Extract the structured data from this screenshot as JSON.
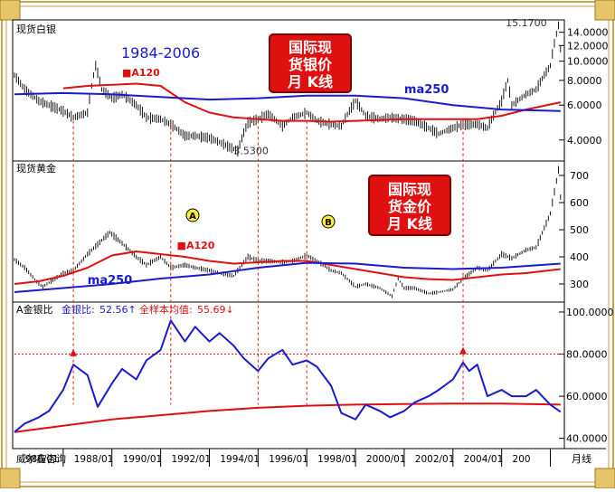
{
  "colors": {
    "frame_gold": "#c9a24a",
    "price": "#000000",
    "ma250": "#1a1ad0",
    "ma120": "#e01010",
    "ratio": "#1a1ad0",
    "ratio_mean": "#e01010",
    "event_line": "#e01010",
    "box_fill": "#e01010",
    "box_text": "#ffffff",
    "title_blue": "#1a1ad0"
  },
  "silver": {
    "panel_label": "现货白银",
    "period_title": "1984-2006",
    "box_lines": [
      "国际现",
      "货银价",
      "月  K线"
    ],
    "label_ma120": "■A120",
    "label_ma250": "ma250",
    "annot_high": "15.1700",
    "annot_low": "3.5300",
    "y_ticks": [
      "4.0000",
      "6.0000",
      "8.0000",
      "10.0000",
      "12.0000",
      "14.0000"
    ]
  },
  "gold": {
    "panel_label": "现货黄金",
    "box_lines": [
      "国际现",
      "货金价",
      "月  K线"
    ],
    "label_ma120": "■A120",
    "label_ma250": "ma250",
    "marker_a": "A",
    "marker_b": "B",
    "y_ticks": [
      "300",
      "400",
      "500",
      "600",
      "700"
    ]
  },
  "ratio": {
    "header_name": "A金银比",
    "header_ratio_label": "金银比:",
    "header_ratio_value": "52.56↑",
    "header_mean_label": "全样本均值:",
    "header_mean_value": "55.69↓",
    "y_ticks": [
      "40.0000",
      "60.0000",
      "80.0000",
      "100.0000"
    ]
  },
  "x_axis": {
    "source": "威尔鑫咨询",
    "ticks": [
      "986/01",
      "1988/01",
      "1990/01",
      "1992/01",
      "1994/01",
      "1996/01",
      "1998/01",
      "2000/01",
      "2002/01",
      "2004/01",
      "200"
    ],
    "suffix": "月线"
  },
  "chart_data": [
    {
      "type": "line",
      "title": "国际现货银价月K线",
      "subtitle": "1984-2006",
      "x_range": [
        "1984/01",
        "2006/06"
      ],
      "ylim": [
        3.2,
        15.5
      ],
      "series": [
        {
          "name": "现货白银",
          "points": [
            [
              "1984/01",
              8.5
            ],
            [
              "1984/06",
              7.2
            ],
            [
              "1985/01",
              6.3
            ],
            [
              "1985/06",
              6.0
            ],
            [
              "1986/01",
              5.6
            ],
            [
              "1986/06",
              5.2
            ],
            [
              "1987/01",
              5.5
            ],
            [
              "1987/05",
              9.5
            ],
            [
              "1987/08",
              7.2
            ],
            [
              "1988/01",
              6.5
            ],
            [
              "1988/06",
              6.8
            ],
            [
              "1989/01",
              6.0
            ],
            [
              "1989/06",
              5.2
            ],
            [
              "1990/01",
              5.1
            ],
            [
              "1990/06",
              4.8
            ],
            [
              "1991/01",
              4.2
            ],
            [
              "1991/06",
              4.2
            ],
            [
              "1992/01",
              4.1
            ],
            [
              "1992/06",
              3.9
            ],
            [
              "1993/01",
              3.6
            ],
            [
              "1993/03",
              3.53
            ],
            [
              "1993/08",
              4.9
            ],
            [
              "1994/01",
              5.1
            ],
            [
              "1994/06",
              5.4
            ],
            [
              "1995/01",
              4.7
            ],
            [
              "1995/06",
              5.2
            ],
            [
              "1996/01",
              5.5
            ],
            [
              "1996/06",
              5.0
            ],
            [
              "1997/01",
              4.8
            ],
            [
              "1997/06",
              4.7
            ],
            [
              "1998/01",
              6.3
            ],
            [
              "1998/06",
              5.3
            ],
            [
              "1999/01",
              5.1
            ],
            [
              "1999/06",
              5.2
            ],
            [
              "2000/01",
              5.1
            ],
            [
              "2000/06",
              5.0
            ],
            [
              "2001/01",
              4.6
            ],
            [
              "2001/06",
              4.3
            ],
            [
              "2002/01",
              4.6
            ],
            [
              "2002/06",
              4.8
            ],
            [
              "2003/01",
              4.8
            ],
            [
              "2003/06",
              4.6
            ],
            [
              "2004/01",
              6.3
            ],
            [
              "2004/04",
              8.0
            ],
            [
              "2004/06",
              6.0
            ],
            [
              "2005/01",
              6.8
            ],
            [
              "2005/06",
              7.2
            ],
            [
              "2006/01",
              9.5
            ],
            [
              "2006/05",
              15.17
            ],
            [
              "2006/06",
              11.5
            ]
          ]
        },
        {
          "name": "MA120",
          "points": [
            [
              "1986/01",
              7.3
            ],
            [
              "1987/01",
              7.5
            ],
            [
              "1988/01",
              7.6
            ],
            [
              "1989/01",
              7.7
            ],
            [
              "1990/01",
              7.5
            ],
            [
              "1991/01",
              6.2
            ],
            [
              "1992/01",
              5.5
            ],
            [
              "1993/01",
              5.2
            ],
            [
              "1994/01",
              5.1
            ],
            [
              "1995/01",
              5.0
            ],
            [
              "1996/01",
              5.0
            ],
            [
              "1997/01",
              4.95
            ],
            [
              "1998/01",
              5.0
            ],
            [
              "1999/01",
              5.05
            ],
            [
              "2000/01",
              5.1
            ],
            [
              "2001/01",
              5.1
            ],
            [
              "2002/01",
              5.1
            ],
            [
              "2003/01",
              5.1
            ],
            [
              "2004/01",
              5.3
            ],
            [
              "2005/01",
              5.7
            ],
            [
              "2006/06",
              6.2
            ]
          ]
        },
        {
          "name": "ma250",
          "points": [
            [
              "1984/01",
              6.8
            ],
            [
              "1986/01",
              6.9
            ],
            [
              "1988/01",
              6.8
            ],
            [
              "1990/01",
              6.6
            ],
            [
              "1992/01",
              6.4
            ],
            [
              "1994/01",
              6.5
            ],
            [
              "1996/01",
              6.7
            ],
            [
              "1998/01",
              6.7
            ],
            [
              "2000/01",
              6.5
            ],
            [
              "2002/01",
              6.0
            ],
            [
              "2004/01",
              5.7
            ],
            [
              "2006/06",
              5.6
            ]
          ]
        }
      ]
    },
    {
      "type": "line",
      "title": "国际现货金价月K线",
      "x_range": [
        "1984/01",
        "2006/06"
      ],
      "ylim": [
        240,
        740
      ],
      "series": [
        {
          "name": "现货黄金",
          "points": [
            [
              "1984/01",
              390
            ],
            [
              "1984/06",
              360
            ],
            [
              "1985/01",
              300
            ],
            [
              "1985/03",
              290
            ],
            [
              "1986/01",
              340
            ],
            [
              "1986/06",
              350
            ],
            [
              "1987/01",
              410
            ],
            [
              "1987/12",
              490
            ],
            [
              "1988/06",
              450
            ],
            [
              "1989/01",
              400
            ],
            [
              "1989/06",
              370
            ],
            [
              "1990/01",
              400
            ],
            [
              "1990/06",
              360
            ],
            [
              "1991/01",
              370
            ],
            [
              "1991/06",
              360
            ],
            [
              "1992/01",
              350
            ],
            [
              "1992/06",
              340
            ],
            [
              "1993/01",
              330
            ],
            [
              "1993/08",
              400
            ],
            [
              "1994/01",
              385
            ],
            [
              "1994/06",
              385
            ],
            [
              "1995/01",
              380
            ],
            [
              "1995/06",
              385
            ],
            [
              "1996/01",
              405
            ],
            [
              "1996/06",
              385
            ],
            [
              "1997/01",
              350
            ],
            [
              "1997/06",
              340
            ],
            [
              "1998/01",
              290
            ],
            [
              "1998/06",
              300
            ],
            [
              "1999/01",
              285
            ],
            [
              "1999/07",
              255
            ],
            [
              "1999/10",
              320
            ],
            [
              "2000/01",
              285
            ],
            [
              "2000/06",
              285
            ],
            [
              "2001/01",
              265
            ],
            [
              "2001/06",
              270
            ],
            [
              "2002/01",
              280
            ],
            [
              "2002/06",
              320
            ],
            [
              "2003/01",
              360
            ],
            [
              "2003/06",
              350
            ],
            [
              "2004/01",
              410
            ],
            [
              "2004/06",
              395
            ],
            [
              "2005/01",
              425
            ],
            [
              "2005/06",
              435
            ],
            [
              "2006/01",
              560
            ],
            [
              "2006/05",
              720
            ],
            [
              "2006/06",
              620
            ]
          ]
        },
        {
          "name": "MA120",
          "points": [
            [
              "1984/01",
              300
            ],
            [
              "1985/01",
              310
            ],
            [
              "1986/01",
              330
            ],
            [
              "1987/01",
              360
            ],
            [
              "1988/01",
              405
            ],
            [
              "1989/01",
              420
            ],
            [
              "1990/01",
              410
            ],
            [
              "1991/01",
              400
            ],
            [
              "1992/01",
              385
            ],
            [
              "1993/01",
              375
            ],
            [
              "1994/01",
              380
            ],
            [
              "1995/01",
              385
            ],
            [
              "1996/01",
              385
            ],
            [
              "1997/01",
              370
            ],
            [
              "1998/01",
              355
            ],
            [
              "1999/01",
              340
            ],
            [
              "2000/01",
              325
            ],
            [
              "2001/01",
              318
            ],
            [
              "2002/01",
              315
            ],
            [
              "2003/01",
              325
            ],
            [
              "2004/01",
              335
            ],
            [
              "2005/01",
              340
            ],
            [
              "2006/06",
              355
            ]
          ]
        },
        {
          "name": "ma250",
          "points": [
            [
              "1984/01",
              270
            ],
            [
              "1986/01",
              285
            ],
            [
              "1988/01",
              300
            ],
            [
              "1990/01",
              320
            ],
            [
              "1992/01",
              335
            ],
            [
              "1994/01",
              360
            ],
            [
              "1996/01",
              378
            ],
            [
              "1998/01",
              375
            ],
            [
              "2000/01",
              360
            ],
            [
              "2002/01",
              355
            ],
            [
              "2004/01",
              360
            ],
            [
              "2006/06",
              375
            ]
          ]
        }
      ]
    },
    {
      "type": "line",
      "title": "金银比",
      "x_range": [
        "1984/01",
        "2006/06"
      ],
      "ylim": [
        36,
        103
      ],
      "series": [
        {
          "name": "金银比",
          "points": [
            [
              "1984/01",
              43
            ],
            [
              "1984/06",
              47
            ],
            [
              "1985/01",
              50
            ],
            [
              "1985/06",
              53
            ],
            [
              "1986/01",
              63
            ],
            [
              "1986/06",
              75
            ],
            [
              "1987/01",
              70
            ],
            [
              "1987/06",
              55
            ],
            [
              "1988/01",
              66
            ],
            [
              "1988/06",
              73
            ],
            [
              "1989/01",
              68
            ],
            [
              "1989/06",
              77
            ],
            [
              "1990/01",
              82
            ],
            [
              "1990/06",
              96
            ],
            [
              "1991/01",
              86
            ],
            [
              "1991/06",
              93
            ],
            [
              "1992/01",
              86
            ],
            [
              "1992/06",
              90
            ],
            [
              "1993/01",
              84
            ],
            [
              "1993/06",
              78
            ],
            [
              "1994/01",
              72
            ],
            [
              "1994/06",
              78
            ],
            [
              "1995/01",
              82
            ],
            [
              "1995/06",
              75
            ],
            [
              "1996/01",
              77
            ],
            [
              "1996/06",
              74
            ],
            [
              "1997/01",
              65
            ],
            [
              "1997/06",
              52
            ],
            [
              "1998/01",
              49
            ],
            [
              "1998/06",
              56
            ],
            [
              "1999/01",
              53
            ],
            [
              "1999/06",
              50
            ],
            [
              "2000/01",
              53
            ],
            [
              "2000/06",
              57
            ],
            [
              "2001/01",
              60
            ],
            [
              "2001/06",
              63
            ],
            [
              "2002/01",
              68
            ],
            [
              "2002/06",
              76
            ],
            [
              "2002/09",
              72
            ],
            [
              "2003/01",
              75
            ],
            [
              "2003/06",
              60
            ],
            [
              "2004/01",
              63
            ],
            [
              "2004/06",
              60
            ],
            [
              "2005/01",
              60
            ],
            [
              "2005/06",
              63
            ],
            [
              "2006/01",
              56
            ],
            [
              "2006/06",
              52.56
            ]
          ]
        },
        {
          "name": "全样本均值",
          "points": [
            [
              "1984/01",
              43
            ],
            [
              "1986/01",
              46
            ],
            [
              "1988/01",
              49
            ],
            [
              "1990/01",
              51
            ],
            [
              "1992/01",
              53
            ],
            [
              "1994/01",
              54.5
            ],
            [
              "1996/01",
              55.5
            ],
            [
              "1998/01",
              56
            ],
            [
              "2000/01",
              56.3
            ],
            [
              "2002/01",
              56.5
            ],
            [
              "2004/01",
              56.5
            ],
            [
              "2006/06",
              56
            ]
          ]
        }
      ],
      "reference_lines": [
        80
      ]
    }
  ],
  "event_dates": [
    "1986/06",
    "1990/06",
    "1994/01",
    "1996/01",
    "2002/06"
  ]
}
